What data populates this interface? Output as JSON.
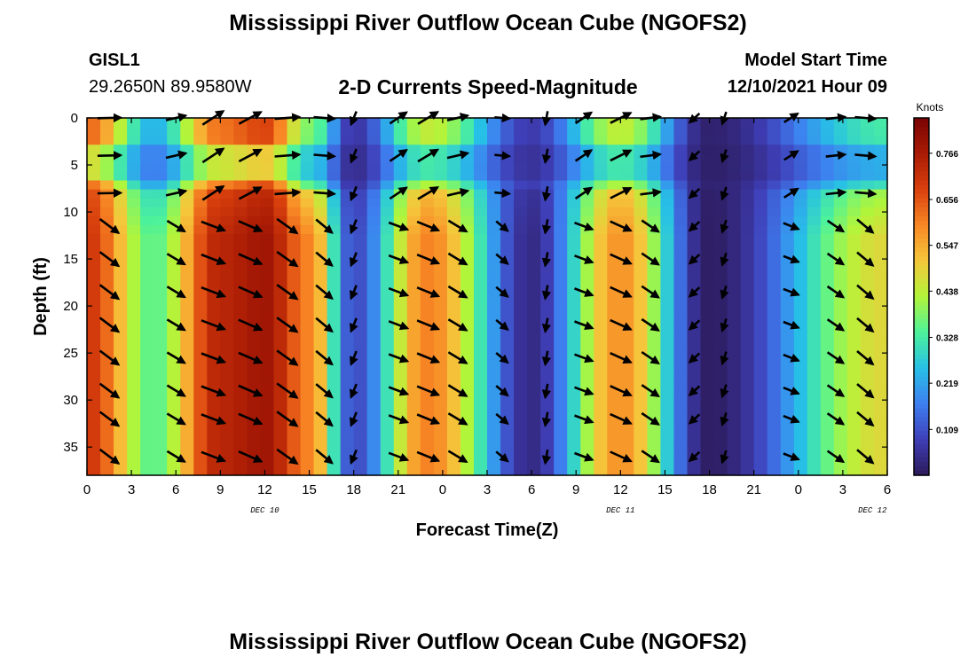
{
  "title": "Mississippi River Outflow Ocean Cube (NGOFS2)",
  "station": {
    "id": "GISL1",
    "coords": "29.2650N  89.9580W"
  },
  "subtitle": "2-D Currents Speed-Magnitude",
  "model_start": {
    "label": "Model Start Time",
    "value": "12/10/2021 Hour 09"
  },
  "footer_title": "Mississippi River Outflow Ocean Cube (NGOFS2)",
  "chart_data": {
    "type": "heatmap",
    "xlabel": "Forecast Time(Z)",
    "ylabel": "Depth (ft)",
    "x_tick_labels": [
      "0",
      "3",
      "6",
      "9",
      "12",
      "15",
      "18",
      "21",
      "0",
      "3",
      "6",
      "9",
      "12",
      "15",
      "18",
      "21",
      "0",
      "3",
      "6"
    ],
    "date_labels": [
      {
        "text": "DEC 10",
        "hour_offset": 12
      },
      {
        "text": "DEC 11",
        "hour_offset": 36
      },
      {
        "text": "DEC 12",
        "hour_offset": 53
      }
    ],
    "xlim_hours": [
      0,
      54
    ],
    "y_ticks": [
      0,
      5,
      10,
      15,
      20,
      25,
      30,
      35
    ],
    "ylim": [
      0,
      38
    ],
    "y_inverted": true,
    "colorbar": {
      "unit": "Knots",
      "ticks": [
        "0.766",
        "0.656",
        "0.547",
        "0.438",
        "0.328",
        "0.219",
        "0.109"
      ],
      "range": [
        0,
        0.85
      ],
      "colors": [
        "#2c1a5a",
        "#3f3fb8",
        "#3e7ff0",
        "#27c0e6",
        "#4df29a",
        "#b2f53a",
        "#f5c73b",
        "#f88725",
        "#d9400d",
        "#a91b05",
        "#7a0403"
      ]
    },
    "speed_profile_top_layer": [
      {
        "hour": 0,
        "speed": 0.62
      },
      {
        "hour": 4.5,
        "speed": 0.22
      },
      {
        "hour": 9,
        "speed": 0.6
      },
      {
        "hour": 12,
        "speed": 0.66
      },
      {
        "hour": 15,
        "speed": 0.35
      },
      {
        "hour": 18,
        "speed": 0.06
      },
      {
        "hour": 23,
        "speed": 0.42
      },
      {
        "hour": 30,
        "speed": 0.08
      },
      {
        "hour": 36,
        "speed": 0.42
      },
      {
        "hour": 42,
        "speed": 0.02
      },
      {
        "hour": 54,
        "speed": 0.3
      }
    ],
    "speed_profile_deep_layer": [
      {
        "hour": 0,
        "speed": 0.7
      },
      {
        "hour": 4.5,
        "speed": 0.35
      },
      {
        "hour": 9,
        "speed": 0.74
      },
      {
        "hour": 12,
        "speed": 0.78
      },
      {
        "hour": 15,
        "speed": 0.6
      },
      {
        "hour": 18,
        "speed": 0.1
      },
      {
        "hour": 23,
        "speed": 0.6
      },
      {
        "hour": 30,
        "speed": 0.04
      },
      {
        "hour": 36,
        "speed": 0.58
      },
      {
        "hour": 42,
        "speed": 0.01
      },
      {
        "hour": 54,
        "speed": 0.48
      }
    ],
    "vector_columns_hours": [
      1.5,
      6,
      8.5,
      11,
      13.5,
      16,
      18,
      21,
      23,
      25,
      28,
      31,
      33.5,
      36,
      38,
      41,
      43,
      47.5,
      50.5,
      52.5
    ],
    "vector_rows_depth": [
      0,
      4,
      8,
      11.5,
      15,
      18.5,
      22,
      25.5,
      29,
      32,
      36
    ],
    "grid": false,
    "legend": "colorbar-right"
  }
}
